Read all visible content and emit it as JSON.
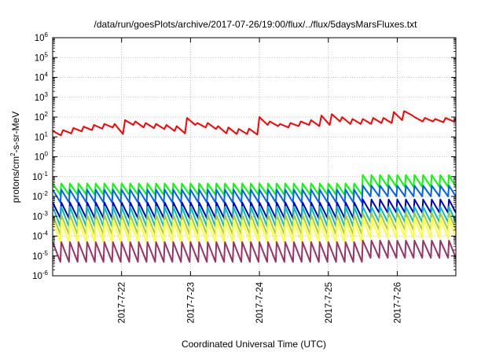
{
  "chart_data": {
    "type": "line",
    "title": "/data/run/goesPlots/archive/2017-07-26/19:00/flux/../flux/5daysMarsFluxes.txt",
    "xlabel": "Coordinated Universal Time (UTC)",
    "ylabel": {
      "base": "protons/cm",
      "sup": "2",
      "rest": "-s-sr-MeV"
    },
    "y_scale": "log",
    "ylim": [
      1e-06,
      1000000.0
    ],
    "y_ticks": [
      {
        "value": -6,
        "base": "10",
        "exp": "-6"
      },
      {
        "value": -5,
        "base": "10",
        "exp": "-5"
      },
      {
        "value": -4,
        "base": "10",
        "exp": "-4"
      },
      {
        "value": -3,
        "base": "10",
        "exp": "-3"
      },
      {
        "value": -2,
        "base": "10",
        "exp": "-2"
      },
      {
        "value": -1,
        "base": "10",
        "exp": "-1"
      },
      {
        "value": 0,
        "base": "10",
        "exp": "0"
      },
      {
        "value": 1,
        "base": "10",
        "exp": "1"
      },
      {
        "value": 2,
        "base": "10",
        "exp": "2"
      },
      {
        "value": 3,
        "base": "10",
        "exp": "3"
      },
      {
        "value": 4,
        "base": "10",
        "exp": "4"
      },
      {
        "value": 5,
        "base": "10",
        "exp": "5"
      },
      {
        "value": 6,
        "base": "10",
        "exp": "6"
      }
    ],
    "xlim": [
      21.0,
      26.85
    ],
    "x_ticks": [
      {
        "value": 22,
        "label": "2017-7-22"
      },
      {
        "value": 23,
        "label": "2017-7-23"
      },
      {
        "value": 24,
        "label": "2017-7-24"
      },
      {
        "value": 25,
        "label": "2017-7-25"
      },
      {
        "value": 26,
        "label": "2017-7-26"
      }
    ],
    "grid": true,
    "legend": "none",
    "series": [
      {
        "color": "#ff0000",
        "points": [
          [
            21.0,
            20
          ],
          [
            21.12,
            12
          ],
          [
            21.15,
            22
          ],
          [
            21.27,
            15
          ],
          [
            21.3,
            28
          ],
          [
            21.42,
            19
          ],
          [
            21.45,
            33
          ],
          [
            21.57,
            22
          ],
          [
            21.6,
            40
          ],
          [
            21.72,
            26
          ],
          [
            21.75,
            45
          ],
          [
            21.87,
            30
          ],
          [
            21.9,
            45
          ],
          [
            22.02,
            14
          ],
          [
            22.05,
            70
          ],
          [
            22.17,
            40
          ],
          [
            22.2,
            60
          ],
          [
            22.32,
            30
          ],
          [
            22.35,
            50
          ],
          [
            22.47,
            28
          ],
          [
            22.5,
            45
          ],
          [
            22.62,
            25
          ],
          [
            22.65,
            40
          ],
          [
            22.77,
            20
          ],
          [
            22.8,
            35
          ],
          [
            22.92,
            15
          ],
          [
            22.95,
            90
          ],
          [
            23.07,
            40
          ],
          [
            23.1,
            50
          ],
          [
            23.22,
            30
          ],
          [
            23.25,
            50
          ],
          [
            23.37,
            25
          ],
          [
            23.4,
            35
          ],
          [
            23.52,
            15
          ],
          [
            23.55,
            30
          ],
          [
            23.67,
            14
          ],
          [
            23.7,
            25
          ],
          [
            23.82,
            14
          ],
          [
            23.85,
            26
          ],
          [
            23.97,
            13
          ],
          [
            24.0,
            100
          ],
          [
            24.12,
            40
          ],
          [
            24.15,
            60
          ],
          [
            24.27,
            35
          ],
          [
            24.3,
            45
          ],
          [
            24.42,
            30
          ],
          [
            24.45,
            50
          ],
          [
            24.57,
            35
          ],
          [
            24.6,
            60
          ],
          [
            24.72,
            40
          ],
          [
            24.75,
            70
          ],
          [
            24.87,
            35
          ],
          [
            24.9,
            120
          ],
          [
            25.02,
            40
          ],
          [
            25.05,
            140
          ],
          [
            25.17,
            60
          ],
          [
            25.2,
            100
          ],
          [
            25.32,
            45
          ],
          [
            25.35,
            80
          ],
          [
            25.47,
            45
          ],
          [
            25.5,
            80
          ],
          [
            25.62,
            45
          ],
          [
            25.65,
            90
          ],
          [
            25.77,
            50
          ],
          [
            25.8,
            90
          ],
          [
            25.92,
            50
          ],
          [
            25.95,
            180
          ],
          [
            26.07,
            70
          ],
          [
            26.1,
            200
          ],
          [
            26.22,
            120
          ],
          [
            26.25,
            100
          ],
          [
            26.37,
            60
          ],
          [
            26.4,
            90
          ],
          [
            26.52,
            60
          ],
          [
            26.55,
            80
          ],
          [
            26.67,
            55
          ],
          [
            26.7,
            90
          ],
          [
            26.82,
            60
          ],
          [
            26.85,
            80
          ]
        ]
      },
      {
        "color": "#00ff00",
        "sawtooth": {
          "low": 0.012,
          "high": 0.045,
          "low2": 0.03,
          "high2": 0.12,
          "switch": 25.5
        }
      },
      {
        "color": "#0060ff",
        "sawtooth": {
          "low": 0.005,
          "high": 0.022,
          "low2": 0.01,
          "high2": 0.035,
          "switch": 25.5
        }
      },
      {
        "color": "#0000cc",
        "sawtooth": {
          "low": 0.0008,
          "high": 0.005,
          "low2": 0.0015,
          "high2": 0.007,
          "switch": 25.5
        }
      },
      {
        "color": "#00c0c0",
        "sawtooth": {
          "low": 0.0003,
          "high": 0.003,
          "low2": 0.0005,
          "high2": 0.003,
          "switch": 25.5
        }
      },
      {
        "color": "#aacc33",
        "sawtooth": {
          "low": 0.00012,
          "high": 0.0012,
          "low2": 0.0002,
          "high2": 0.0015,
          "switch": 25.5
        }
      },
      {
        "color": "#ffff33",
        "sawtooth": {
          "low": 5e-05,
          "high": 0.0006,
          "low2": 8e-05,
          "high2": 0.0008,
          "switch": 25.5
        }
      },
      {
        "color": "#993366",
        "sawtooth": {
          "low": 5e-06,
          "high": 5e-05,
          "low2": 8e-06,
          "high2": 6e-05,
          "switch": 25.5
        }
      }
    ]
  }
}
